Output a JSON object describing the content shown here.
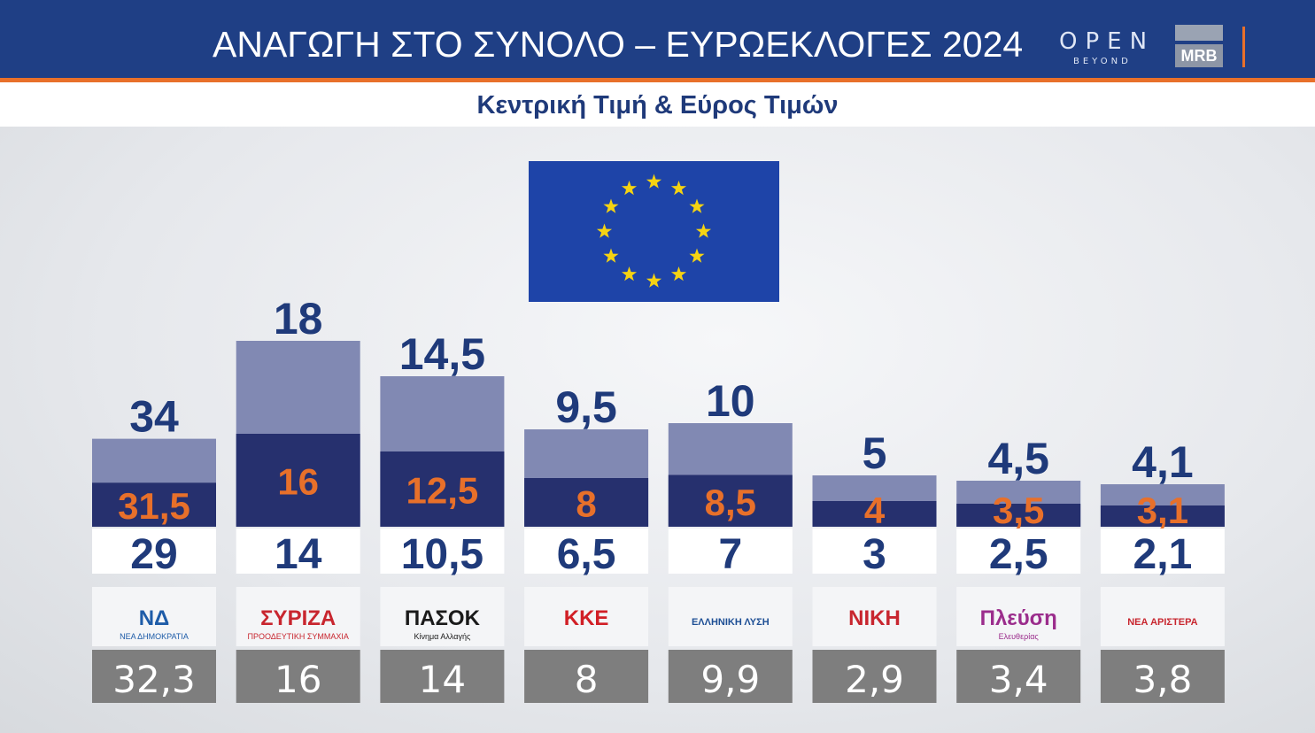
{
  "header": {
    "title": "ΑΝΑΓΩΓΗ ΣΤΟ ΣΥΝΟΛΟ – ΕΥΡΩΕΚΛΟΓΕΣ 2024",
    "open_logo": "OPEN",
    "open_sub": "BEYOND",
    "mrb_logo": "MRB",
    "subtitle": "Κεντρική Τιμή & Εύρος Τιμών"
  },
  "colors": {
    "header_bg": "#1f3f85",
    "accent_orange": "#e8702a",
    "range_upper": "#8189b3",
    "range_lower": "#26306e",
    "label_blue": "#1f3a7a",
    "footer_gray": "#7e7e7e",
    "flag_blue": "#1e44a8",
    "flag_star": "#f5d312"
  },
  "chart_data": {
    "type": "bar",
    "title": "ΑΝΑΓΩΓΗ ΣΤΟ ΣΥΝΟΛΟ – ΕΥΡΩΕΚΛΟΓΕΣ 2024",
    "subtitle": "Κεντρική Τιμή & Εύρος Τιμών",
    "categories": [
      {
        "logo_text": "ΝΔ",
        "logo_sub": "ΝΕΑ ΔΗΜΟΚΡΑΤΙΑ",
        "logo_color": "#1e5ca8",
        "logo_icon": "nd-logo-icon"
      },
      {
        "logo_text": "ΣΥΡΙΖΑ",
        "logo_sub": "ΠΡΟΟΔΕΥΤΙΚΗ ΣΥΜΜΑΧΙΑ",
        "logo_color": "#c8262f",
        "logo_icon": "syriza-logo-icon"
      },
      {
        "logo_text": "ΠΑΣΟΚ",
        "logo_sub": "Κίνημα Αλλαγής",
        "logo_color": "#1a1a1a",
        "logo_icon": "pasok-sun-icon"
      },
      {
        "logo_text": "ΚΚΕ",
        "logo_sub": "",
        "logo_color": "#d11f26",
        "logo_icon": "kke-hammer-sickle-icon"
      },
      {
        "logo_text": "ΕΛΛΗΝΙΚΗ ΛΥΣΗ",
        "logo_sub": "",
        "logo_color": "#1e4f95",
        "logo_icon": "elliniki-lysi-compass-icon"
      },
      {
        "logo_text": "ΝΙΚΗ",
        "logo_sub": "",
        "logo_color": "#c8262f",
        "logo_icon": "niki-logo-icon"
      },
      {
        "logo_text": "Πλεύση",
        "logo_sub": "Ελευθερίας",
        "logo_color": "#9b2d8c",
        "logo_icon": "plefsi-ships-icon"
      },
      {
        "logo_text": "ΝΕΑ ΑΡΙΣΤΕΡΑ",
        "logo_sub": "",
        "logo_color": "#c8262f",
        "logo_icon": "nea-aristera-logo-icon"
      }
    ],
    "series": [
      {
        "values_max": [
          34,
          18,
          14.5,
          9.5,
          10,
          5,
          4.5,
          4.1
        ]
      },
      {
        "values_center": [
          31.5,
          16,
          12.5,
          8,
          8.5,
          4,
          3.5,
          3.1
        ]
      },
      {
        "values_min": [
          29,
          14,
          10.5,
          6.5,
          7,
          3,
          2.5,
          2.1
        ]
      },
      {
        "values_previous": [
          32.3,
          16,
          14,
          8,
          9.9,
          2.9,
          3.4,
          3.8
        ]
      }
    ],
    "labels": {
      "max": [
        "34",
        "18",
        "14,5",
        "9,5",
        "10",
        "5",
        "4,5",
        "4,1"
      ],
      "center": [
        "31,5",
        "16",
        "12,5",
        "8",
        "8,5",
        "4",
        "3,5",
        "3,1"
      ],
      "min": [
        "29",
        "14",
        "10,5",
        "6,5",
        "7",
        "3",
        "2,5",
        "2,1"
      ],
      "previous": [
        "32,3",
        "16",
        "14",
        "8",
        "9,9",
        "2,9",
        "3,4",
        "3,8"
      ]
    },
    "grid": false,
    "legend": "none"
  }
}
